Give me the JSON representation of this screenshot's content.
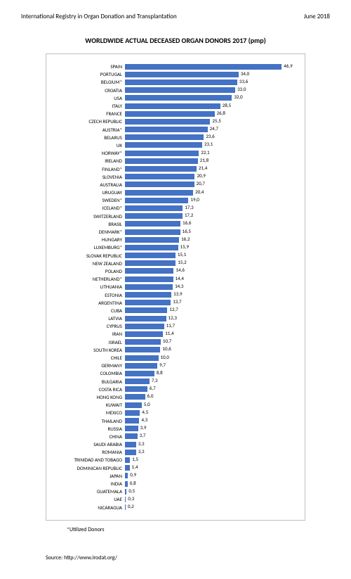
{
  "header": {
    "left": "International Registry in Organ Donation and Transplantation",
    "right": "June 2018"
  },
  "chart": {
    "type": "bar-horizontal",
    "title": "WORLDWIDE ACTUAL DECEASED ORGAN DONORS 2017 (pmp)",
    "bar_color": "#4472c4",
    "border_color": "#bfbfbf",
    "background_color": "#ffffff",
    "text_color": "#000000",
    "label_fontsize": 7,
    "title_fontsize": 10,
    "xmax": 50,
    "data": [
      {
        "label": "SPAIN",
        "value": 46.9,
        "display": "46,9"
      },
      {
        "label": "PORTUGAL",
        "value": 34.0,
        "display": "34,0"
      },
      {
        "label": "BELGIUM*",
        "value": 33.6,
        "display": "33,6"
      },
      {
        "label": "CROATIA",
        "value": 33.0,
        "display": "33,0"
      },
      {
        "label": "USA",
        "value": 32.0,
        "display": "32,0"
      },
      {
        "label": "ITALY",
        "value": 28.5,
        "display": "28,5"
      },
      {
        "label": "FRANCE",
        "value": 26.8,
        "display": "26,8"
      },
      {
        "label": "CZECH REPUBLIC",
        "value": 25.5,
        "display": "25,5"
      },
      {
        "label": "AUSTRIA*",
        "value": 24.7,
        "display": "24,7"
      },
      {
        "label": "BELARUS",
        "value": 23.6,
        "display": "23,6"
      },
      {
        "label": "UK",
        "value": 23.1,
        "display": "23,1"
      },
      {
        "label": "NORWAY*",
        "value": 22.1,
        "display": "22,1"
      },
      {
        "label": "IRELAND",
        "value": 21.8,
        "display": "21,8"
      },
      {
        "label": "FINLAND*",
        "value": 21.4,
        "display": "21,4"
      },
      {
        "label": "SLOVENIA",
        "value": 20.9,
        "display": "20,9"
      },
      {
        "label": "AUSTRALIA",
        "value": 20.7,
        "display": "20,7"
      },
      {
        "label": "URUGUAY",
        "value": 20.4,
        "display": "20,4"
      },
      {
        "label": "SWEDEN*",
        "value": 19.0,
        "display": "19,0"
      },
      {
        "label": "ICELAND*",
        "value": 17.3,
        "display": "17,3"
      },
      {
        "label": "SWITZERLAND",
        "value": 17.2,
        "display": "17,2"
      },
      {
        "label": "BRASIL",
        "value": 16.6,
        "display": "16,6"
      },
      {
        "label": "DENMARK*",
        "value": 16.5,
        "display": "16,5"
      },
      {
        "label": "HUNGARY",
        "value": 16.2,
        "display": "16,2"
      },
      {
        "label": "LUXEMBURG*",
        "value": 15.9,
        "display": "15,9"
      },
      {
        "label": "SLOVAK REPUBLIC",
        "value": 15.1,
        "display": "15,1"
      },
      {
        "label": "NEW ZEALAND",
        "value": 15.2,
        "display": "15,2"
      },
      {
        "label": "POLAND",
        "value": 14.6,
        "display": "14,6"
      },
      {
        "label": "NETHERLAND*",
        "value": 14.4,
        "display": "14,4"
      },
      {
        "label": "LITHUANIA",
        "value": 14.3,
        "display": "14,3"
      },
      {
        "label": "ESTONIA",
        "value": 13.9,
        "display": "13,9"
      },
      {
        "label": "ARGENTINA",
        "value": 13.7,
        "display": "13,7"
      },
      {
        "label": "CUBA",
        "value": 12.7,
        "display": "12,7"
      },
      {
        "label": "LATVIA",
        "value": 12.3,
        "display": "12,3"
      },
      {
        "label": "CYPRUS",
        "value": 11.7,
        "display": "11,7"
      },
      {
        "label": "IRAN",
        "value": 11.4,
        "display": "11,4"
      },
      {
        "label": "ISRAEL",
        "value": 10.7,
        "display": "10,7"
      },
      {
        "label": "SOUTH KOREA",
        "value": 10.6,
        "display": "10,6"
      },
      {
        "label": "CHILE",
        "value": 10.0,
        "display": "10,0"
      },
      {
        "label": "GERMANY",
        "value": 9.7,
        "display": "9,7"
      },
      {
        "label": "COLOMBIA",
        "value": 8.8,
        "display": "8,8"
      },
      {
        "label": "BULGARIA",
        "value": 7.3,
        "display": "7,3"
      },
      {
        "label": "COSTA RICA",
        "value": 6.7,
        "display": "6,7"
      },
      {
        "label": "HONG KONG",
        "value": 6.0,
        "display": "6,0"
      },
      {
        "label": "KUWAIT",
        "value": 5.0,
        "display": "5,0"
      },
      {
        "label": "MEXICO",
        "value": 4.5,
        "display": "4,5"
      },
      {
        "label": "THAILAND",
        "value": 4.3,
        "display": "4,3"
      },
      {
        "label": "RUSSIA",
        "value": 3.9,
        "display": "3,9"
      },
      {
        "label": "CHINA",
        "value": 3.7,
        "display": "3,7"
      },
      {
        "label": "SAUDI ARABIA",
        "value": 3.3,
        "display": "3,3"
      },
      {
        "label": "ROMANIA",
        "value": 3.3,
        "display": "3,3"
      },
      {
        "label": "TRINIDAD AND TOBAGO",
        "value": 1.5,
        "display": "1,5"
      },
      {
        "label": "DOMINICAN REPUBLIC",
        "value": 1.4,
        "display": "1,4"
      },
      {
        "label": "JAPAN",
        "value": 0.9,
        "display": "0,9"
      },
      {
        "label": "INDIA",
        "value": 0.8,
        "display": "0,8"
      },
      {
        "label": "GUATEMALA",
        "value": 0.5,
        "display": "0,5"
      },
      {
        "label": "UAE",
        "value": 0.3,
        "display": "0,3"
      },
      {
        "label": "NICARAGUA",
        "value": 0.2,
        "display": "0,2"
      }
    ]
  },
  "footnote": "*Utilized Donors",
  "source": "Source: http://www.irodat.org/"
}
